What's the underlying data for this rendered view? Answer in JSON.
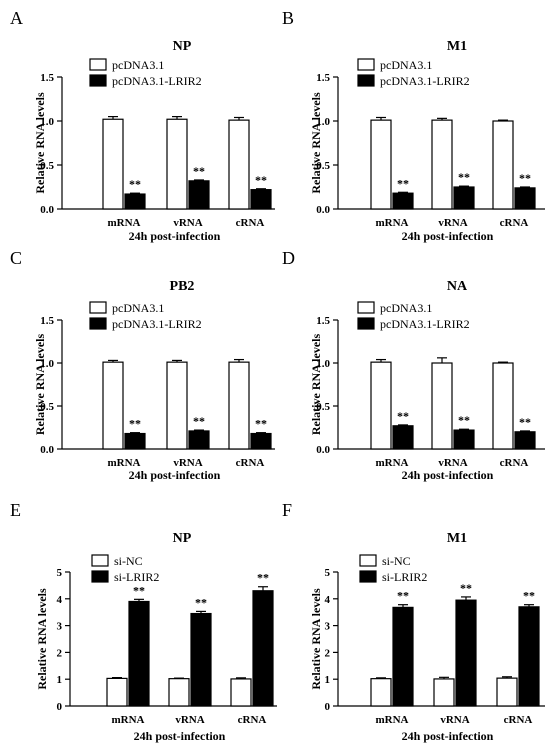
{
  "figure": {
    "panels": [
      "A",
      "B",
      "C",
      "D",
      "E",
      "F"
    ]
  },
  "chart_data": [
    {
      "panel": "A",
      "type": "bar",
      "title": "NP",
      "xlabel": "24h post-infection",
      "ylabel": "Relative RNA levels",
      "ylim": [
        0,
        1.5
      ],
      "yticks": [
        "0.0",
        "0.5",
        "1.0",
        "1.5"
      ],
      "categories": [
        "mRNA",
        "vRNA",
        "cRNA"
      ],
      "legend_position": "top-left",
      "series": [
        {
          "name": "pcDNA3.1",
          "fill": "#ffffff",
          "values": [
            1.02,
            1.02,
            1.01
          ],
          "errors": [
            0.03,
            0.03,
            0.03
          ],
          "sig": [
            "",
            "",
            ""
          ]
        },
        {
          "name": "pcDNA3.1-LRIR2",
          "fill": "#000000",
          "values": [
            0.17,
            0.32,
            0.22
          ],
          "errors": [
            0.01,
            0.01,
            0.01
          ],
          "sig": [
            "**",
            "**",
            "**"
          ]
        }
      ]
    },
    {
      "panel": "B",
      "type": "bar",
      "title": "M1",
      "xlabel": "24h post-infection",
      "ylabel": "Relative RNA levels",
      "ylim": [
        0,
        1.5
      ],
      "yticks": [
        "0.0",
        "0.5",
        "1.0",
        "1.5"
      ],
      "categories": [
        "mRNA",
        "vRNA",
        "cRNA"
      ],
      "legend_position": "top-left",
      "series": [
        {
          "name": "pcDNA3.1",
          "fill": "#ffffff",
          "values": [
            1.01,
            1.01,
            1.0
          ],
          "errors": [
            0.03,
            0.02,
            0.01
          ],
          "sig": [
            "",
            "",
            ""
          ]
        },
        {
          "name": "pcDNA3.1-LRIR2",
          "fill": "#000000",
          "values": [
            0.18,
            0.25,
            0.24
          ],
          "errors": [
            0.01,
            0.01,
            0.01
          ],
          "sig": [
            "**",
            "**",
            "**"
          ]
        }
      ]
    },
    {
      "panel": "C",
      "type": "bar",
      "title": "PB2",
      "xlabel": "24h post-infection",
      "ylabel": "Relative RNA levels",
      "ylim": [
        0,
        1.5
      ],
      "yticks": [
        "0.0",
        "0.5",
        "1.0",
        "1.5"
      ],
      "categories": [
        "mRNA",
        "vRNA",
        "cRNA"
      ],
      "legend_position": "top-left",
      "series": [
        {
          "name": "pcDNA3.1",
          "fill": "#ffffff",
          "values": [
            1.01,
            1.01,
            1.01
          ],
          "errors": [
            0.02,
            0.02,
            0.03
          ],
          "sig": [
            "",
            "",
            ""
          ]
        },
        {
          "name": "pcDNA3.1-LRIR2",
          "fill": "#000000",
          "values": [
            0.18,
            0.21,
            0.18
          ],
          "errors": [
            0.01,
            0.01,
            0.01
          ],
          "sig": [
            "**",
            "**",
            "**"
          ]
        }
      ]
    },
    {
      "panel": "D",
      "type": "bar",
      "title": "NA",
      "xlabel": "24h post-infection",
      "ylabel": "Relative RNA levels",
      "ylim": [
        0,
        1.5
      ],
      "yticks": [
        "0.0",
        "0.5",
        "1.0",
        "1.5"
      ],
      "categories": [
        "mRNA",
        "vRNA",
        "cRNA"
      ],
      "legend_position": "top-left",
      "series": [
        {
          "name": "pcDNA3.1",
          "fill": "#ffffff",
          "values": [
            1.01,
            1.0,
            1.0
          ],
          "errors": [
            0.03,
            0.06,
            0.01
          ],
          "sig": [
            "",
            "",
            ""
          ]
        },
        {
          "name": "pcDNA3.1-LRIR2",
          "fill": "#000000",
          "values": [
            0.27,
            0.22,
            0.2
          ],
          "errors": [
            0.01,
            0.01,
            0.01
          ],
          "sig": [
            "**",
            "**",
            "**"
          ]
        }
      ]
    },
    {
      "panel": "E",
      "type": "bar",
      "title": "NP",
      "xlabel": "24h post-infection",
      "ylabel": "Relative RNA levels",
      "ylim": [
        0,
        5
      ],
      "yticks": [
        "0",
        "1",
        "2",
        "3",
        "4",
        "5"
      ],
      "categories": [
        "mRNA",
        "vRNA",
        "cRNA"
      ],
      "legend_position": "top-left",
      "series": [
        {
          "name": "si-NC",
          "fill": "#ffffff",
          "values": [
            1.03,
            1.02,
            1.01
          ],
          "errors": [
            0.03,
            0.02,
            0.04
          ],
          "sig": [
            "",
            "",
            ""
          ]
        },
        {
          "name": "si-LRIR2",
          "fill": "#000000",
          "values": [
            3.9,
            3.45,
            4.3
          ],
          "errors": [
            0.08,
            0.08,
            0.15
          ],
          "sig": [
            "**",
            "**",
            "**"
          ]
        }
      ]
    },
    {
      "panel": "F",
      "type": "bar",
      "title": "M1",
      "xlabel": "24h post-infection",
      "ylabel": "Relative RNA levels",
      "ylim": [
        0,
        5
      ],
      "yticks": [
        "0",
        "1",
        "2",
        "3",
        "4",
        "5"
      ],
      "categories": [
        "mRNA",
        "vRNA",
        "cRNA"
      ],
      "legend_position": "top-left",
      "series": [
        {
          "name": "si-NC",
          "fill": "#ffffff",
          "values": [
            1.02,
            1.01,
            1.04
          ],
          "errors": [
            0.03,
            0.06,
            0.05
          ],
          "sig": [
            "",
            "",
            ""
          ]
        },
        {
          "name": "si-LRIR2",
          "fill": "#000000",
          "values": [
            3.68,
            3.95,
            3.7
          ],
          "errors": [
            0.1,
            0.12,
            0.08
          ],
          "sig": [
            "**",
            "**",
            "**"
          ]
        }
      ]
    }
  ]
}
